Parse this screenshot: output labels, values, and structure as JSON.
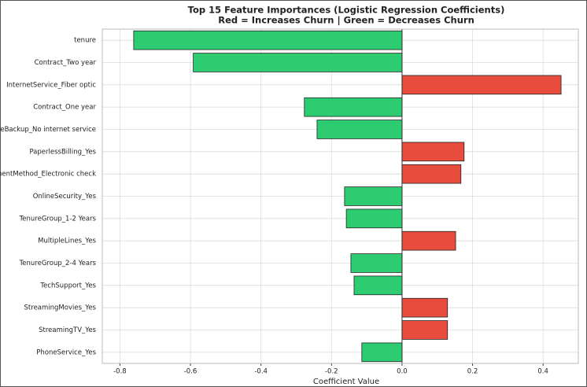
{
  "chart_data": {
    "type": "barh",
    "title": "Top 15 Feature Importances (Logistic Regression Coefficients)",
    "subtitle": "Red = Increases Churn | Green = Decreases Churn",
    "x_label": "Coefficient Value",
    "categories": [
      "tenure",
      "Contract_Two year",
      "InternetService_Fiber optic",
      "Contract_One year",
      "OnlineBackup_No internet service",
      "PaperlessBilling_Yes",
      "PaymentMethod_Electronic check",
      "OnlineSecurity_Yes",
      "TenureGroup_1-2 Years",
      "MultipleLines_Yes",
      "TenureGroup_2-4 Years",
      "TechSupport_Yes",
      "StreamingMovies_Yes",
      "StreamingTV_Yes",
      "PhoneService_Yes"
    ],
    "values": [
      -0.761,
      -0.592,
      0.451,
      -0.277,
      -0.241,
      0.176,
      0.167,
      -0.163,
      -0.158,
      0.152,
      -0.145,
      -0.136,
      0.129,
      0.129,
      -0.114
    ],
    "colors": [
      "#2ecc71",
      "#2ecc71",
      "#e74c3c",
      "#2ecc71",
      "#2ecc71",
      "#e74c3c",
      "#e74c3c",
      "#2ecc71",
      "#2ecc71",
      "#e74c3c",
      "#2ecc71",
      "#2ecc71",
      "#e74c3c",
      "#e74c3c",
      "#2ecc71"
    ],
    "xlim": [
      -0.85,
      0.5
    ],
    "xticks": [
      -0.8,
      -0.6,
      -0.4,
      -0.2,
      {
        "value": 0,
        "label": "0.0"
      },
      0.2,
      0.4
    ],
    "grid": true
  }
}
